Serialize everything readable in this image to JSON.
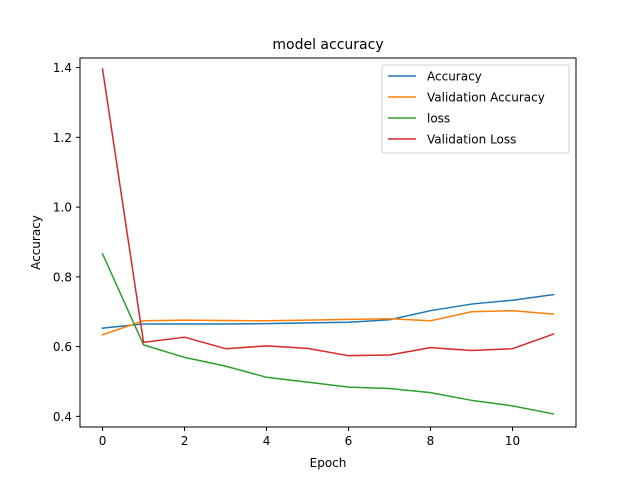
{
  "chart_data": {
    "type": "line",
    "title": "model accuracy",
    "xlabel": "Epoch",
    "ylabel": "Accuracy",
    "xlim": [
      -0.55,
      11.55
    ],
    "ylim": [
      0.3695,
      1.4275
    ],
    "xticks": [
      0,
      2,
      4,
      6,
      8,
      10
    ],
    "yticks": [
      0.4,
      0.6,
      0.8,
      1.0,
      1.2,
      1.4
    ],
    "x": [
      0,
      1,
      2,
      3,
      4,
      5,
      6,
      7,
      8,
      9,
      10,
      11
    ],
    "grid": false,
    "legend_position": "top-right",
    "series": [
      {
        "name": "Accuracy",
        "color": "#1f77b4",
        "values": [
          0.653,
          0.665,
          0.665,
          0.665,
          0.666,
          0.668,
          0.67,
          0.677,
          0.703,
          0.722,
          0.733,
          0.749
        ]
      },
      {
        "name": "Validation Accuracy",
        "color": "#ff7f0e",
        "values": [
          0.634,
          0.674,
          0.676,
          0.675,
          0.674,
          0.676,
          0.678,
          0.68,
          0.674,
          0.7,
          0.703,
          0.693
        ]
      },
      {
        "name": "loss",
        "color": "#2ca02c",
        "values": [
          0.866,
          0.605,
          0.569,
          0.544,
          0.512,
          0.498,
          0.484,
          0.48,
          0.468,
          0.446,
          0.43,
          0.407
        ]
      },
      {
        "name": "Validation Loss",
        "color": "#d62728",
        "values": [
          1.396,
          0.612,
          0.627,
          0.594,
          0.602,
          0.595,
          0.574,
          0.576,
          0.597,
          0.589,
          0.594,
          0.636
        ]
      }
    ]
  }
}
